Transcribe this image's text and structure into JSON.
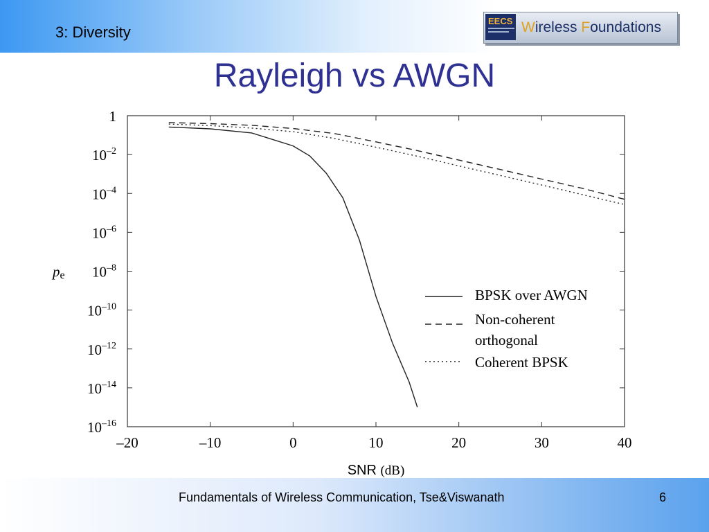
{
  "header": {
    "section": "3: Diversity",
    "logo_badge": "EECS",
    "logo_text_a": "W",
    "logo_text_b": "ireless ",
    "logo_text_c": "F",
    "logo_text_d": "oundations"
  },
  "slide": {
    "title": "Rayleigh vs AWGN"
  },
  "footer": {
    "text": "Fundamentals of Wireless Communication, Tse&Viswanath",
    "page": "6"
  },
  "chart_data": {
    "type": "line",
    "ylabel": "p",
    "ylabel_sub": "e",
    "xlabel": "SNR",
    "xlabel_unit": "(dB)",
    "xlim": [
      -20,
      40
    ],
    "ylim_log10": [
      -16,
      0
    ],
    "x_ticks": [
      "–20",
      "–10",
      "0",
      "10",
      "20",
      "30",
      "40"
    ],
    "y_ticks": [
      {
        "exp": 0,
        "label": "1",
        "sup": ""
      },
      {
        "exp": -2,
        "label": "10",
        "sup": "–2"
      },
      {
        "exp": -4,
        "label": "10",
        "sup": "–4"
      },
      {
        "exp": -6,
        "label": "10",
        "sup": "–6"
      },
      {
        "exp": -8,
        "label": "10",
        "sup": "–8"
      },
      {
        "exp": -10,
        "label": "10",
        "sup": "–10"
      },
      {
        "exp": -12,
        "label": "10",
        "sup": "–12"
      },
      {
        "exp": -14,
        "label": "10",
        "sup": "–14"
      },
      {
        "exp": -16,
        "label": "10",
        "sup": "–16"
      }
    ],
    "grid": false,
    "legend_position": "right",
    "series": [
      {
        "name": "BPSK over AWGN",
        "style": "solid",
        "x": [
          -15,
          -10,
          -5,
          0,
          2,
          4,
          6,
          8,
          10,
          12,
          14,
          15
        ],
        "y": [
          0.26,
          0.21,
          0.13,
          0.028,
          0.0086,
          0.0011,
          6e-05,
          4e-07,
          5e-10,
          2e-12,
          2e-14,
          1e-15
        ]
      },
      {
        "name": "Non-coherent orthogonal",
        "style": "dashed",
        "x": [
          -15,
          -10,
          -5,
          0,
          5,
          10,
          15,
          20,
          25,
          30,
          35,
          40
        ],
        "y": [
          0.44,
          0.39,
          0.32,
          0.22,
          0.12,
          0.045,
          0.016,
          0.0052,
          0.0017,
          0.00055,
          0.00018,
          5e-05
        ]
      },
      {
        "name": "Coherent BPSK",
        "style": "dotted",
        "x": [
          -15,
          -10,
          -5,
          0,
          5,
          10,
          15,
          20,
          25,
          30,
          35,
          40
        ],
        "y": [
          0.37,
          0.31,
          0.23,
          0.15,
          0.067,
          0.024,
          0.0082,
          0.0026,
          0.00084,
          0.00027,
          8.5e-05,
          2.7e-05
        ]
      }
    ],
    "legend": [
      "BPSK over AWGN",
      "Non-coherent",
      "orthogonal",
      "Coherent BPSK"
    ]
  }
}
